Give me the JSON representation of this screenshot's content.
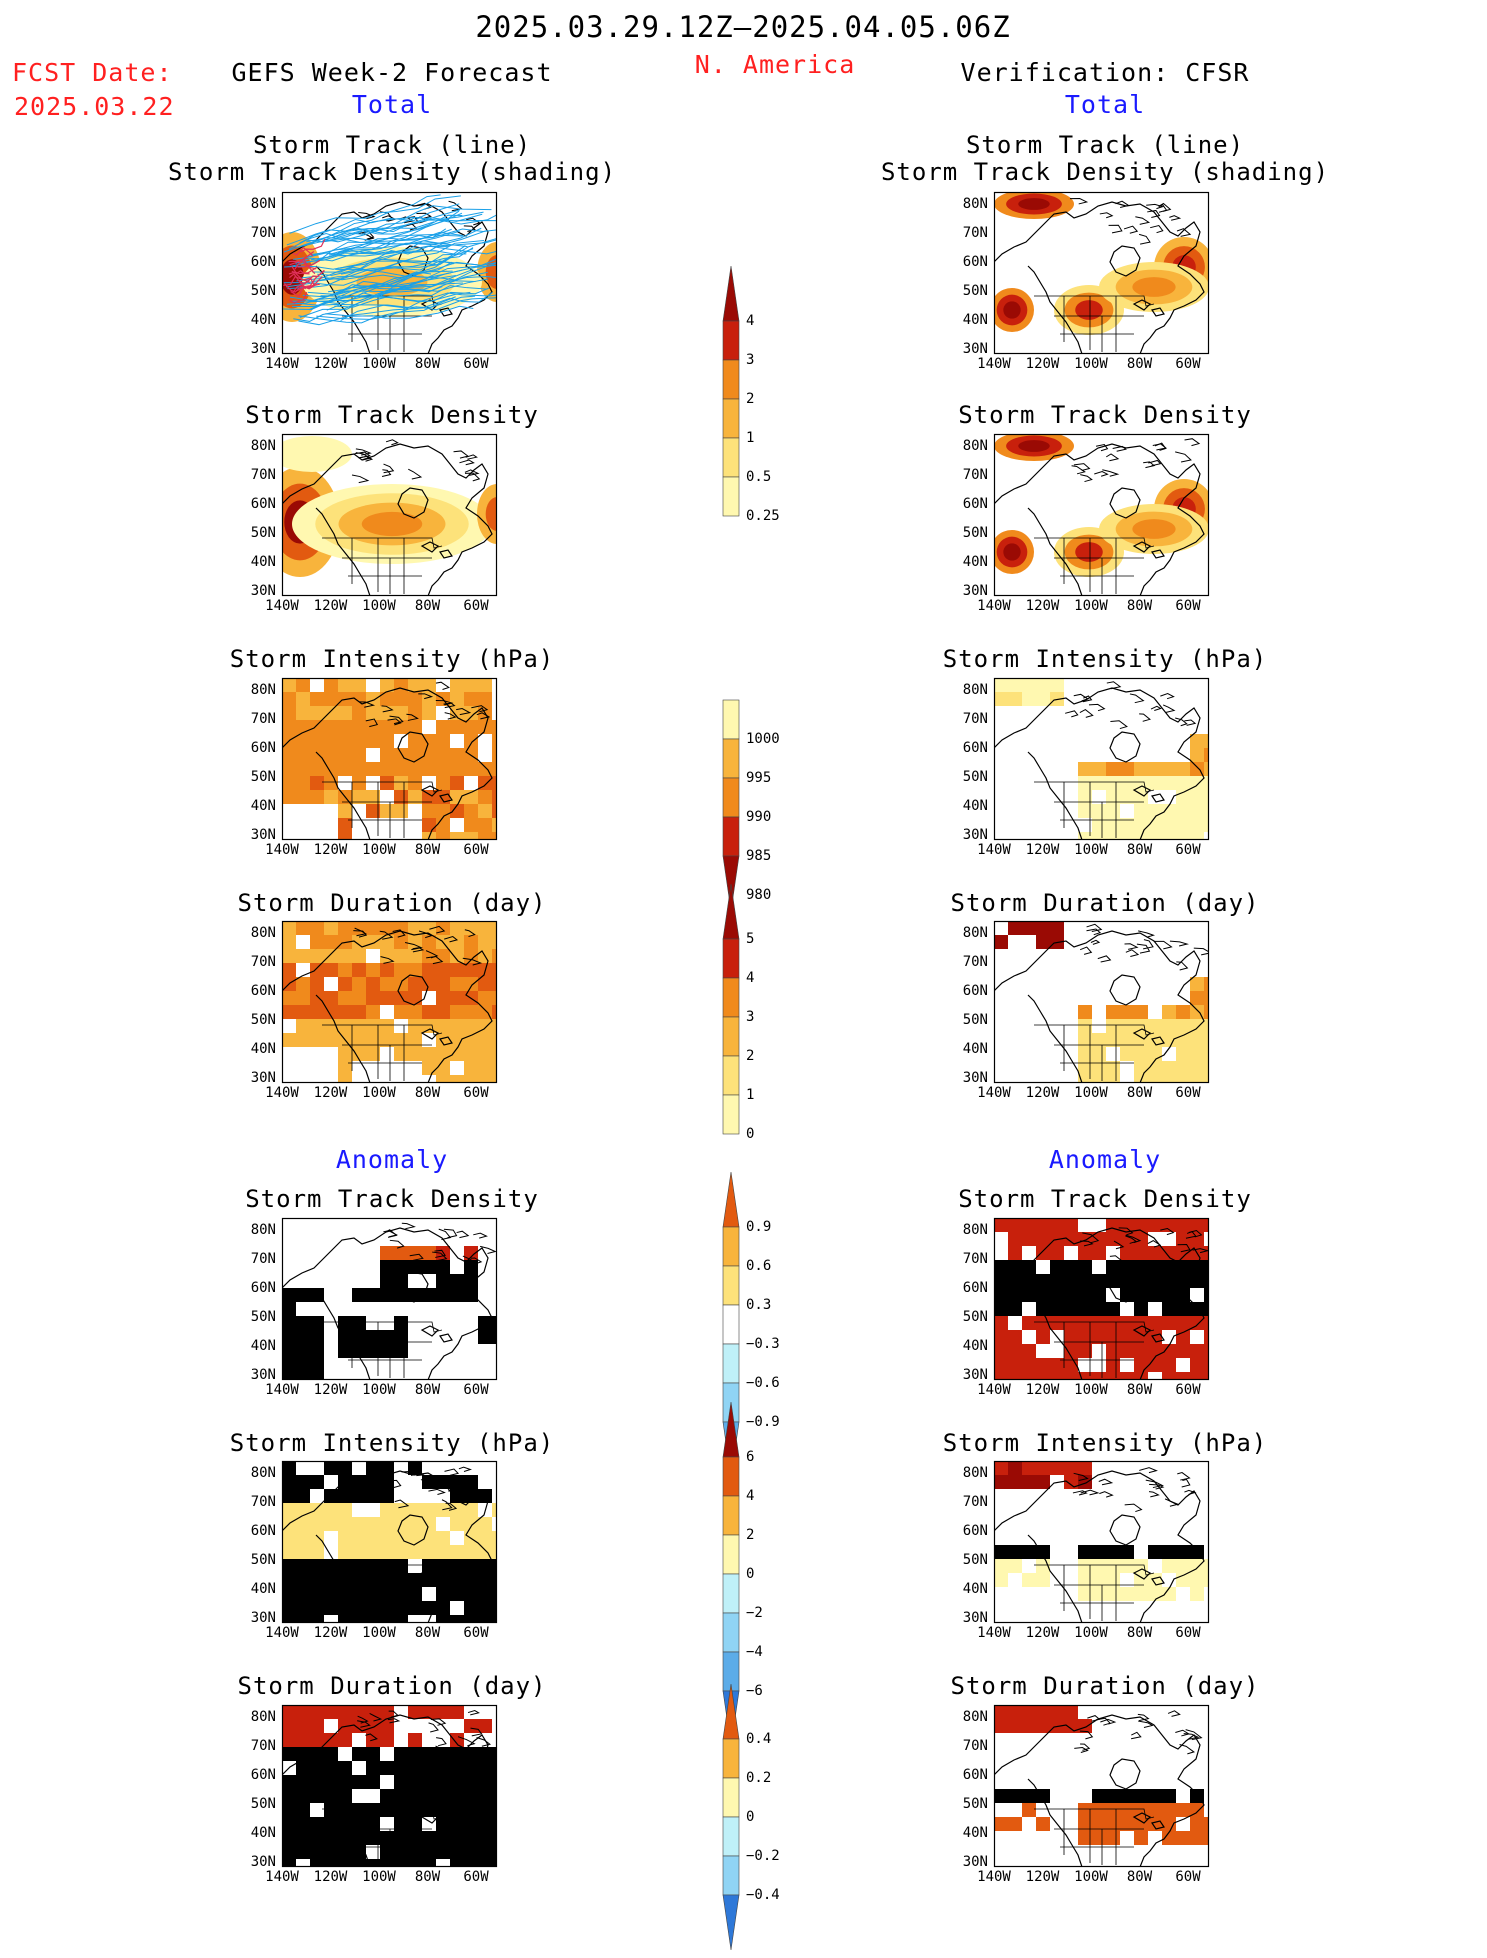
{
  "header": {
    "date_range": "2025.03.29.12Z–2025.04.05.06Z",
    "region": "N. America",
    "fcst_label": "FCST Date:",
    "fcst_date": "2025.03.22",
    "left_title": "GEFS Week-2 Forecast",
    "right_title": "Verification: CFSR"
  },
  "sections": {
    "total": "Total",
    "anomaly": "Anomaly"
  },
  "panel_titles": {
    "track_line": "Storm Track (line)",
    "track_shade": "Storm Track Density (shading)",
    "density": "Storm Track Density",
    "intensity": "Storm Intensity (hPa)",
    "duration": "Storm Duration (day)"
  },
  "axes": {
    "lat_labels": [
      "80N",
      "70N",
      "60N",
      "50N",
      "40N",
      "30N"
    ],
    "lon_labels": [
      "140W",
      "120W",
      "100W",
      "80W",
      "60W"
    ]
  },
  "colorbars": {
    "density": [
      "4",
      "3",
      "2",
      "1",
      "0.5",
      "0.25"
    ],
    "intensity": [
      "1000",
      "995",
      "990",
      "985",
      "980"
    ],
    "duration": [
      "5",
      "4",
      "3",
      "2",
      "1",
      "0"
    ],
    "density_anom": [
      "0.9",
      "0.6",
      "0.3",
      "−0.3",
      "−0.6",
      "−0.9"
    ],
    "intensity_anom": [
      "6",
      "4",
      "2",
      "0",
      "−2",
      "−4",
      "−6"
    ],
    "duration_anom": [
      "0.4",
      "0.2",
      "0",
      "−0.2",
      "−0.4"
    ]
  },
  "colors": {
    "warm": [
      "#fff8b0",
      "#fde27a",
      "#f8b43c",
      "#f08a1c",
      "#e25a10",
      "#c8200c",
      "#9a0a04"
    ],
    "cool": [
      "#bff0f8",
      "#90d4f4",
      "#5cace8",
      "#2e78d8"
    ],
    "track_blue": "#1aa0e8",
    "track_red": "#e0305a",
    "title_red": "#ff2020",
    "title_blue": "#1a1aff"
  }
}
